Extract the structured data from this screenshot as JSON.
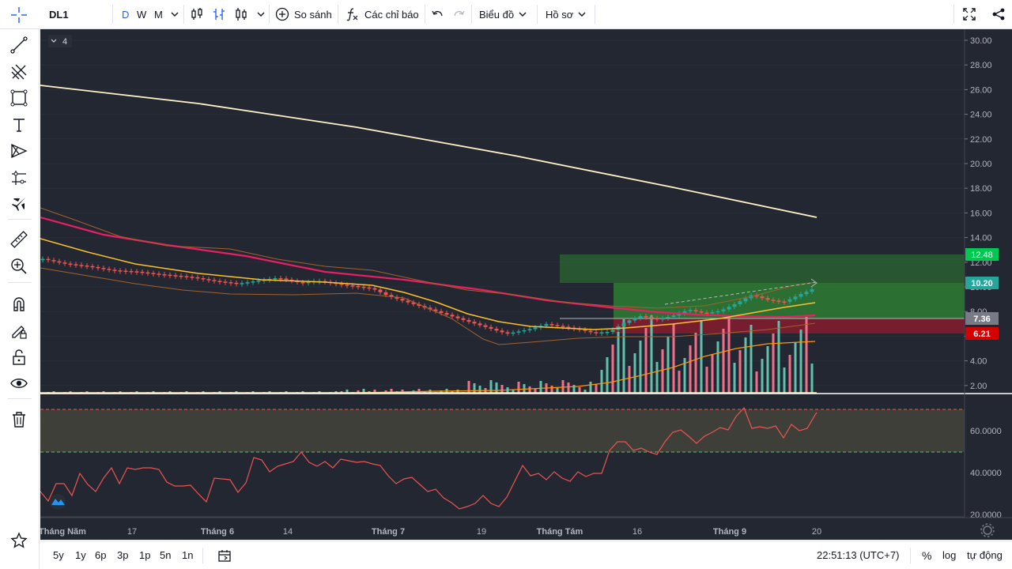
{
  "toolbar": {
    "symbol": "DL1",
    "intervals": [
      "D",
      "W",
      "M"
    ],
    "active_interval": "D",
    "compare_label": "So sánh",
    "indicators_label": "Các chỉ báo",
    "chart_label": "Biểu đồ",
    "profile_label": "Hồ sơ"
  },
  "chart": {
    "legend_collapsed_count": "4",
    "price_axis": [
      "30.00",
      "28.00",
      "26.00",
      "24.00",
      "22.00",
      "20.00",
      "18.00",
      "16.00",
      "14.00",
      "12.00",
      "10.00",
      "8.00",
      "6.00",
      "4.00",
      "2.00"
    ],
    "price_labels": {
      "target": "12.48",
      "current": "10.20",
      "entry": "7.36",
      "stop": "6.21"
    },
    "rsi_axis": [
      "60.0000",
      "40.0000",
      "20.0000"
    ],
    "time_axis": [
      "Tháng Năm",
      "17",
      "Tháng 6",
      "14",
      "Tháng 7",
      "19",
      "Tháng Tám",
      "16",
      "Tháng 9",
      "20"
    ],
    "colors": {
      "background": "#232732",
      "up": "#26a69a",
      "down": "#ef5350",
      "target": "#00c853",
      "current": "#26a69a",
      "entry": "#787b86",
      "stop": "#d50000"
    }
  },
  "bottom": {
    "ranges": [
      "5y",
      "1y",
      "6p",
      "3p",
      "1p",
      "5n",
      "1n"
    ],
    "clock": "22:51:13 (UTC+7)",
    "percent": "%",
    "log": "log",
    "auto": "tự động"
  }
}
